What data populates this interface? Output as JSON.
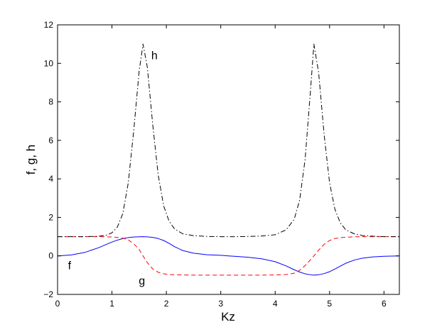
{
  "chart_data": {
    "type": "line",
    "title": "",
    "xlabel": "Kz",
    "ylabel": "f, g, h",
    "xlim": [
      0,
      6.283
    ],
    "ylim": [
      -2,
      12
    ],
    "xticks": [
      0,
      1,
      2,
      3,
      4,
      5,
      6
    ],
    "yticks": [
      -2,
      0,
      2,
      4,
      6,
      8,
      10,
      12
    ],
    "grid": false,
    "legend": "none",
    "x": [
      0,
      0.25,
      0.5,
      0.75,
      0.9,
      1.0,
      1.1,
      1.2,
      1.3,
      1.4,
      1.5,
      1.571,
      1.65,
      1.75,
      1.85,
      1.95,
      2.05,
      2.15,
      2.3,
      2.5,
      2.75,
      3.0,
      3.142,
      3.3,
      3.5,
      3.75,
      4.0,
      4.2,
      4.35,
      4.45,
      4.55,
      4.65,
      4.712,
      4.8,
      4.9,
      5.0,
      5.1,
      5.2,
      5.3,
      5.45,
      5.6,
      5.8,
      6.0,
      6.283
    ],
    "series": [
      {
        "name": "f",
        "color": "#0000ff",
        "dash": "solid",
        "values": [
          0,
          0.05,
          0.18,
          0.42,
          0.6,
          0.72,
          0.82,
          0.9,
          0.95,
          0.98,
          0.995,
          1.0,
          0.99,
          0.96,
          0.9,
          0.8,
          0.65,
          0.48,
          0.28,
          0.14,
          0.06,
          0.03,
          0.0,
          -0.03,
          -0.07,
          -0.15,
          -0.3,
          -0.52,
          -0.72,
          -0.84,
          -0.93,
          -0.98,
          -1.0,
          -0.98,
          -0.92,
          -0.82,
          -0.68,
          -0.53,
          -0.38,
          -0.22,
          -0.12,
          -0.05,
          -0.02,
          0
        ]
      },
      {
        "name": "g",
        "color": "#ff0000",
        "dash": "dashed",
        "values": [
          1.0,
          1.0,
          1.0,
          1.0,
          0.99,
          0.98,
          0.96,
          0.92,
          0.83,
          0.63,
          0.33,
          0.0,
          -0.35,
          -0.68,
          -0.85,
          -0.93,
          -0.97,
          -0.98,
          -0.99,
          -1.0,
          -1.0,
          -1.0,
          -1.0,
          -1.0,
          -1.0,
          -1.0,
          -0.99,
          -0.97,
          -0.9,
          -0.75,
          -0.5,
          -0.2,
          0.0,
          0.3,
          0.6,
          0.8,
          0.9,
          0.95,
          0.97,
          0.99,
          1.0,
          1.0,
          1.0,
          1.0
        ]
      },
      {
        "name": "h",
        "color": "#000000",
        "dash": "dashdot",
        "values": [
          1.0,
          1.0,
          1.0,
          1.02,
          1.08,
          1.2,
          1.5,
          2.2,
          3.8,
          6.5,
          9.6,
          11.0,
          9.8,
          6.8,
          4.2,
          2.6,
          1.8,
          1.4,
          1.15,
          1.05,
          1.01,
          1.0,
          1.0,
          1.0,
          1.01,
          1.03,
          1.1,
          1.35,
          1.9,
          2.9,
          5.0,
          8.6,
          11.0,
          9.5,
          6.3,
          3.8,
          2.4,
          1.7,
          1.35,
          1.15,
          1.06,
          1.02,
          1.0,
          1.0
        ]
      }
    ],
    "annotations": [
      {
        "text": "h",
        "x": 1.78,
        "y": 10.4
      },
      {
        "text": "f",
        "x": 0.22,
        "y": -0.5
      },
      {
        "text": "g",
        "x": 1.55,
        "y": -1.3
      }
    ]
  }
}
